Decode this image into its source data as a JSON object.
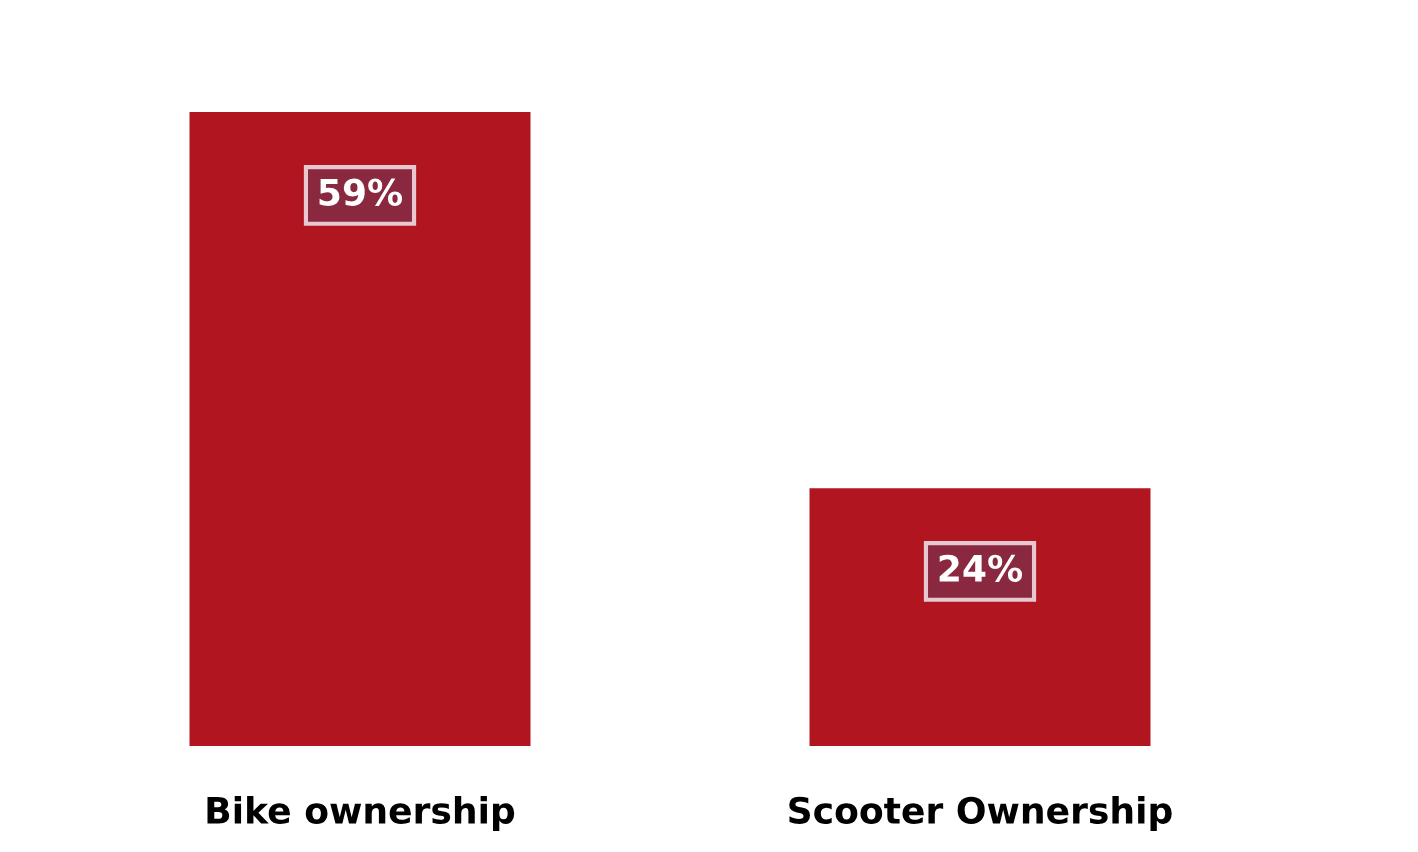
{
  "chart_data": {
    "type": "bar",
    "categories": [
      "Bike ownership",
      "Scooter Ownership"
    ],
    "values": [
      59,
      24
    ],
    "value_labels": [
      "59%",
      "24%"
    ],
    "color": "#b01520",
    "tick_labels": "x",
    "grid": false,
    "legend": false
  }
}
